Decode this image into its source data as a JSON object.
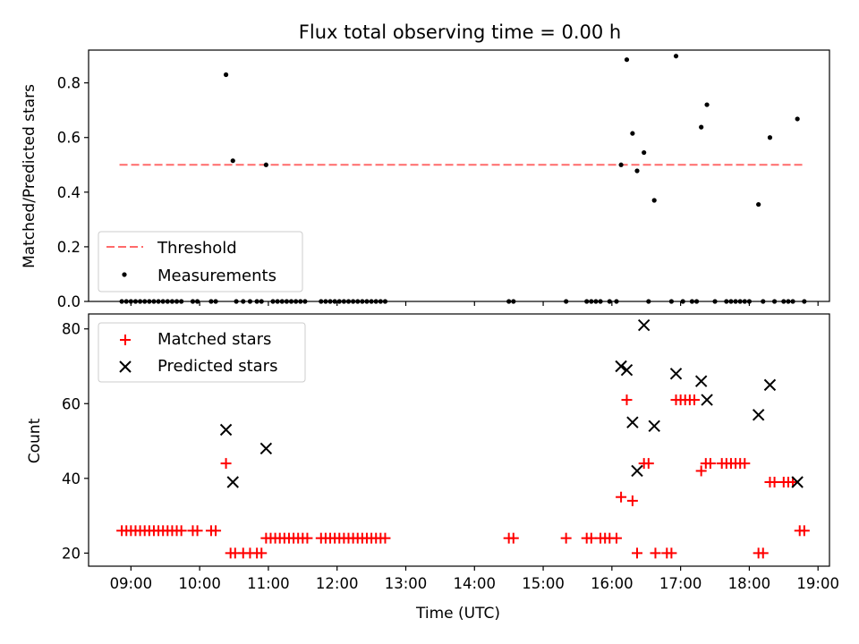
{
  "colors": {
    "threshold": "#ff6a6a",
    "measurements": "#000000",
    "matched": "#ff0000",
    "predicted": "#000000"
  },
  "chart_data": [
    {
      "type": "scatter",
      "title": "Flux total observing time = 0.00 h",
      "xlabel": "",
      "ylabel": "Matched/Predicted stars",
      "ylim": [
        0,
        0.92
      ],
      "xlim": [
        "08:23",
        "19:10"
      ],
      "yticks": [
        "0.0",
        "0.2",
        "0.4",
        "0.6",
        "0.8"
      ],
      "legend": {
        "position": "lower-left",
        "entries": [
          "Threshold",
          "Measurements"
        ]
      },
      "threshold": {
        "name": "Threshold",
        "value": 0.5,
        "x_range": [
          "08:50",
          "18:48"
        ]
      },
      "series": [
        {
          "name": "Measurements",
          "points": [
            [
              "08:52",
              0
            ],
            [
              "08:56",
              0
            ],
            [
              "09:00",
              0
            ],
            [
              "09:04",
              0
            ],
            [
              "09:08",
              0
            ],
            [
              "09:12",
              0
            ],
            [
              "09:16",
              0
            ],
            [
              "09:20",
              0
            ],
            [
              "09:24",
              0
            ],
            [
              "09:28",
              0
            ],
            [
              "09:32",
              0
            ],
            [
              "09:36",
              0
            ],
            [
              "09:40",
              0
            ],
            [
              "09:44",
              0
            ],
            [
              "09:54",
              0
            ],
            [
              "09:58",
              0
            ],
            [
              "10:10",
              0
            ],
            [
              "10:14",
              0
            ],
            [
              "10:23",
              0.83
            ],
            [
              "10:29",
              0.515
            ],
            [
              "10:32",
              0
            ],
            [
              "10:38",
              0
            ],
            [
              "10:44",
              0
            ],
            [
              "10:50",
              0
            ],
            [
              "10:54",
              0
            ],
            [
              "10:58",
              0.5
            ],
            [
              "11:04",
              0
            ],
            [
              "11:08",
              0
            ],
            [
              "11:12",
              0
            ],
            [
              "11:16",
              0
            ],
            [
              "11:20",
              0
            ],
            [
              "11:24",
              0
            ],
            [
              "11:28",
              0
            ],
            [
              "11:32",
              0
            ],
            [
              "11:46",
              0
            ],
            [
              "11:50",
              0
            ],
            [
              "11:54",
              0
            ],
            [
              "11:58",
              0
            ],
            [
              "12:02",
              0
            ],
            [
              "12:06",
              0
            ],
            [
              "12:10",
              0
            ],
            [
              "12:14",
              0
            ],
            [
              "12:18",
              0
            ],
            [
              "12:22",
              0
            ],
            [
              "12:26",
              0
            ],
            [
              "12:30",
              0
            ],
            [
              "12:34",
              0
            ],
            [
              "12:38",
              0
            ],
            [
              "12:42",
              0
            ],
            [
              "14:30",
              0
            ],
            [
              "14:34",
              0
            ],
            [
              "15:20",
              0
            ],
            [
              "15:38",
              0
            ],
            [
              "15:42",
              0
            ],
            [
              "15:46",
              0
            ],
            [
              "15:50",
              0
            ],
            [
              "15:58",
              0
            ],
            [
              "16:04",
              0
            ],
            [
              "16:08",
              0.5
            ],
            [
              "16:13",
              0.885
            ],
            [
              "16:18",
              0.615
            ],
            [
              "16:22",
              0.478
            ],
            [
              "16:28",
              0.545
            ],
            [
              "16:32",
              0
            ],
            [
              "16:37",
              0.37
            ],
            [
              "16:52",
              0
            ],
            [
              "16:56",
              0.898
            ],
            [
              "17:02",
              0
            ],
            [
              "17:10",
              0
            ],
            [
              "17:14",
              0
            ],
            [
              "17:18",
              0.638
            ],
            [
              "17:23",
              0.72
            ],
            [
              "17:30",
              0
            ],
            [
              "17:40",
              0
            ],
            [
              "17:44",
              0
            ],
            [
              "17:48",
              0
            ],
            [
              "17:52",
              0
            ],
            [
              "17:56",
              0
            ],
            [
              "18:00",
              0
            ],
            [
              "18:08",
              0.355
            ],
            [
              "18:12",
              0
            ],
            [
              "18:18",
              0.6
            ],
            [
              "18:22",
              0
            ],
            [
              "18:30",
              0
            ],
            [
              "18:34",
              0
            ],
            [
              "18:38",
              0
            ],
            [
              "18:42",
              0.668
            ],
            [
              "18:48",
              0
            ]
          ]
        }
      ]
    },
    {
      "type": "scatter",
      "title": "",
      "xlabel": "Time (UTC)",
      "ylabel": "Count",
      "ylim": [
        16.5,
        84
      ],
      "xlim": [
        "08:23",
        "19:10"
      ],
      "yticks": [
        "20",
        "40",
        "60",
        "80"
      ],
      "xticks": [
        "09:00",
        "10:00",
        "11:00",
        "12:00",
        "13:00",
        "14:00",
        "15:00",
        "16:00",
        "17:00",
        "18:00",
        "19:00"
      ],
      "legend": {
        "position": "upper-left",
        "entries": [
          "Matched stars",
          "Predicted stars"
        ]
      },
      "series": [
        {
          "name": "Matched stars",
          "marker": "+",
          "points": [
            [
              "08:52",
              26
            ],
            [
              "08:56",
              26
            ],
            [
              "09:00",
              26
            ],
            [
              "09:04",
              26
            ],
            [
              "09:08",
              26
            ],
            [
              "09:12",
              26
            ],
            [
              "09:16",
              26
            ],
            [
              "09:20",
              26
            ],
            [
              "09:24",
              26
            ],
            [
              "09:28",
              26
            ],
            [
              "09:32",
              26
            ],
            [
              "09:36",
              26
            ],
            [
              "09:40",
              26
            ],
            [
              "09:44",
              26
            ],
            [
              "09:54",
              26
            ],
            [
              "09:58",
              26
            ],
            [
              "10:10",
              26
            ],
            [
              "10:14",
              26
            ],
            [
              "10:23",
              44
            ],
            [
              "10:27",
              20
            ],
            [
              "10:31",
              20
            ],
            [
              "10:38",
              20
            ],
            [
              "10:44",
              20
            ],
            [
              "10:50",
              20
            ],
            [
              "10:54",
              20
            ],
            [
              "10:58",
              24
            ],
            [
              "11:02",
              24
            ],
            [
              "11:06",
              24
            ],
            [
              "11:10",
              24
            ],
            [
              "11:14",
              24
            ],
            [
              "11:18",
              24
            ],
            [
              "11:22",
              24
            ],
            [
              "11:26",
              24
            ],
            [
              "11:30",
              24
            ],
            [
              "11:34",
              24
            ],
            [
              "11:46",
              24
            ],
            [
              "11:50",
              24
            ],
            [
              "11:54",
              24
            ],
            [
              "11:58",
              24
            ],
            [
              "12:02",
              24
            ],
            [
              "12:06",
              24
            ],
            [
              "12:10",
              24
            ],
            [
              "12:14",
              24
            ],
            [
              "12:18",
              24
            ],
            [
              "12:22",
              24
            ],
            [
              "12:26",
              24
            ],
            [
              "12:30",
              24
            ],
            [
              "12:34",
              24
            ],
            [
              "12:38",
              24
            ],
            [
              "12:42",
              24
            ],
            [
              "14:30",
              24
            ],
            [
              "14:34",
              24
            ],
            [
              "15:20",
              24
            ],
            [
              "15:38",
              24
            ],
            [
              "15:42",
              24
            ],
            [
              "15:50",
              24
            ],
            [
              "15:54",
              24
            ],
            [
              "15:58",
              24
            ],
            [
              "16:04",
              24
            ],
            [
              "16:08",
              35
            ],
            [
              "16:13",
              61
            ],
            [
              "16:18",
              34
            ],
            [
              "16:22",
              20
            ],
            [
              "16:28",
              44
            ],
            [
              "16:32",
              44
            ],
            [
              "16:38",
              20
            ],
            [
              "16:48",
              20
            ],
            [
              "16:52",
              20
            ],
            [
              "16:56",
              61
            ],
            [
              "17:00",
              61
            ],
            [
              "17:04",
              61
            ],
            [
              "17:08",
              61
            ],
            [
              "17:12",
              61
            ],
            [
              "17:18",
              42
            ],
            [
              "17:22",
              44
            ],
            [
              "17:26",
              44
            ],
            [
              "17:36",
              44
            ],
            [
              "17:40",
              44
            ],
            [
              "17:44",
              44
            ],
            [
              "17:48",
              44
            ],
            [
              "17:52",
              44
            ],
            [
              "17:56",
              44
            ],
            [
              "18:08",
              20
            ],
            [
              "18:12",
              20
            ],
            [
              "18:18",
              39
            ],
            [
              "18:22",
              39
            ],
            [
              "18:30",
              39
            ],
            [
              "18:34",
              39
            ],
            [
              "18:38",
              39
            ],
            [
              "18:44",
              26
            ],
            [
              "18:48",
              26
            ]
          ]
        },
        {
          "name": "Predicted stars",
          "marker": "x",
          "points": [
            [
              "10:23",
              53
            ],
            [
              "10:29",
              39
            ],
            [
              "10:58",
              48
            ],
            [
              "16:08",
              70
            ],
            [
              "16:13",
              69
            ],
            [
              "16:18",
              55
            ],
            [
              "16:22",
              42
            ],
            [
              "16:28",
              81
            ],
            [
              "16:37",
              54
            ],
            [
              "16:56",
              68
            ],
            [
              "17:18",
              66
            ],
            [
              "17:23",
              61
            ],
            [
              "18:08",
              57
            ],
            [
              "18:18",
              65
            ],
            [
              "18:42",
              39
            ]
          ]
        }
      ]
    }
  ]
}
